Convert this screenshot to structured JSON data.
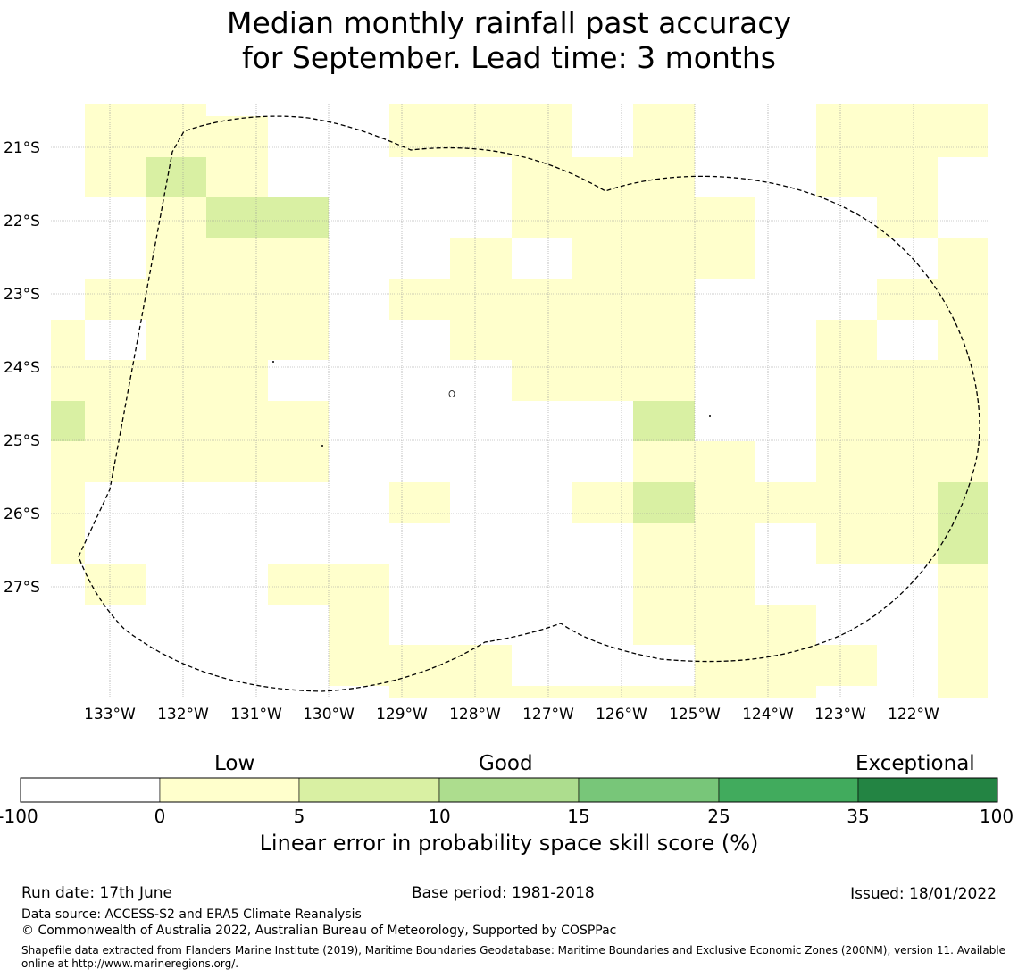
{
  "title": {
    "line1": "Median monthly rainfall past accuracy",
    "line2": "for September. Lead time: 3 months"
  },
  "map": {
    "lat_labels": [
      "21°S",
      "22°S",
      "23°S",
      "24°S",
      "25°S",
      "26°S",
      "27°S"
    ],
    "lon_labels": [
      "133°W",
      "132°W",
      "131°W",
      "130°W",
      "129°W",
      "128°W",
      "127°W",
      "126°W",
      "125°W",
      "124°W",
      "123°W",
      "122°W"
    ],
    "colors": {
      "low": "#ffffcc",
      "good_low": "#d9f0a3",
      "good_mid": "#addd8e",
      "good_high": "#78c679",
      "high": "#41ab5d",
      "exceptional": "#238443"
    },
    "boundary": "Exclusive Economic Zone outline (dashed)"
  },
  "colorbar": {
    "categories": [
      "Low",
      "Good",
      "Exceptional"
    ],
    "ticks": [
      "-100",
      "0",
      "5",
      "10",
      "15",
      "25",
      "35",
      "100"
    ],
    "colors": [
      "#ffffff",
      "#ffffcc",
      "#d9f0a3",
      "#addd8e",
      "#78c679",
      "#41ab5d",
      "#238443"
    ],
    "label": "Linear error in probability space skill score (%)"
  },
  "footer": {
    "run_date": "Run date: 17th June",
    "base_period": "Base period: 1981-2018",
    "issued": "Issued: 18/01/2022",
    "data_source": "Data source: ACCESS-S2 and ERA5 Climate Reanalysis",
    "copyright": "© Commonwealth of Australia 2022, Australian Bureau of Meteorology, Supported by COSPPac",
    "shapefile": "Shapefile data extracted from Flanders Marine Institute (2019), Maritime Boundaries Geodatabase: Maritime Boundaries and Exclusive Economic Zones (200NM), version 11. Available online at http://www.marineregions.org/."
  }
}
